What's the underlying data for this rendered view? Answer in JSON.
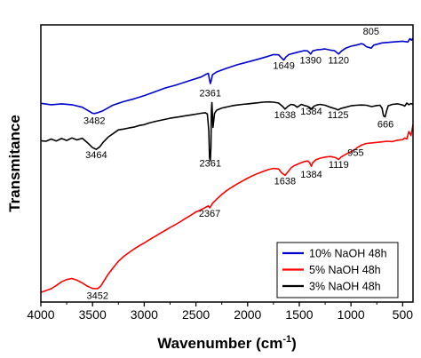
{
  "chart_data": {
    "type": "line",
    "title": "",
    "xlabel": "Wavenumber (cm",
    "xlabel_sup": "-1",
    "xlabel_close": ")",
    "ylabel": "Transmitance",
    "xlim": [
      4000,
      400
    ],
    "ylim": [
      0,
      1
    ],
    "x_reversed": true,
    "y_ticks_shown": false,
    "grid": false,
    "legend_position": "bottom-right",
    "x_ticks": [
      4000,
      3500,
      3000,
      2500,
      2000,
      1500,
      1000,
      500
    ],
    "x_tick_labels": [
      "4000",
      "3500",
      "3000",
      "2500",
      "2000",
      "1500",
      "1000",
      "500"
    ],
    "series": [
      {
        "name": "10% NaOH 48h",
        "color": "#0000cc",
        "points": [
          [
            4000,
            0.717
          ],
          [
            3900,
            0.712
          ],
          [
            3800,
            0.715
          ],
          [
            3700,
            0.712
          ],
          [
            3600,
            0.703
          ],
          [
            3550,
            0.692
          ],
          [
            3500,
            0.681
          ],
          [
            3482,
            0.68
          ],
          [
            3450,
            0.683
          ],
          [
            3400,
            0.69
          ],
          [
            3300,
            0.711
          ],
          [
            3200,
            0.723
          ],
          [
            3100,
            0.733
          ],
          [
            3000,
            0.745
          ],
          [
            2900,
            0.758
          ],
          [
            2800,
            0.772
          ],
          [
            2700,
            0.782
          ],
          [
            2600,
            0.794
          ],
          [
            2500,
            0.806
          ],
          [
            2450,
            0.812
          ],
          [
            2400,
            0.822
          ],
          [
            2380,
            0.825
          ],
          [
            2370,
            0.805
          ],
          [
            2361,
            0.788
          ],
          [
            2350,
            0.802
          ],
          [
            2340,
            0.82
          ],
          [
            2300,
            0.83
          ],
          [
            2200,
            0.844
          ],
          [
            2100,
            0.856
          ],
          [
            2000,
            0.866
          ],
          [
            1900,
            0.876
          ],
          [
            1800,
            0.887
          ],
          [
            1750,
            0.893
          ],
          [
            1700,
            0.892
          ],
          [
            1670,
            0.88
          ],
          [
            1649,
            0.873
          ],
          [
            1630,
            0.884
          ],
          [
            1600,
            0.893
          ],
          [
            1550,
            0.898
          ],
          [
            1500,
            0.903
          ],
          [
            1450,
            0.907
          ],
          [
            1420,
            0.906
          ],
          [
            1390,
            0.895
          ],
          [
            1370,
            0.906
          ],
          [
            1330,
            0.91
          ],
          [
            1300,
            0.911
          ],
          [
            1250,
            0.913
          ],
          [
            1200,
            0.909
          ],
          [
            1160,
            0.907
          ],
          [
            1120,
            0.895
          ],
          [
            1090,
            0.906
          ],
          [
            1050,
            0.916
          ],
          [
            1000,
            0.923
          ],
          [
            950,
            0.927
          ],
          [
            900,
            0.932
          ],
          [
            880,
            0.93
          ],
          [
            850,
            0.921
          ],
          [
            805,
            0.916
          ],
          [
            780,
            0.927
          ],
          [
            700,
            0.935
          ],
          [
            600,
            0.938
          ],
          [
            500,
            0.941
          ],
          [
            450,
            0.938
          ],
          [
            430,
            0.95
          ],
          [
            415,
            0.945
          ],
          [
            400,
            0.952
          ]
        ]
      },
      {
        "name": "5% NaOH 48h",
        "color": "#ff0000",
        "points": [
          [
            4000,
            0.035
          ],
          [
            3900,
            0.048
          ],
          [
            3850,
            0.06
          ],
          [
            3800,
            0.073
          ],
          [
            3750,
            0.081
          ],
          [
            3700,
            0.085
          ],
          [
            3650,
            0.079
          ],
          [
            3600,
            0.069
          ],
          [
            3550,
            0.057
          ],
          [
            3500,
            0.049
          ],
          [
            3452,
            0.048
          ],
          [
            3420,
            0.058
          ],
          [
            3400,
            0.07
          ],
          [
            3350,
            0.1
          ],
          [
            3300,
            0.124
          ],
          [
            3250,
            0.147
          ],
          [
            3200,
            0.164
          ],
          [
            3150,
            0.178
          ],
          [
            3100,
            0.191
          ],
          [
            3050,
            0.203
          ],
          [
            3000,
            0.213
          ],
          [
            2950,
            0.225
          ],
          [
            2900,
            0.236
          ],
          [
            2850,
            0.247
          ],
          [
            2800,
            0.258
          ],
          [
            2750,
            0.269
          ],
          [
            2700,
            0.279
          ],
          [
            2650,
            0.29
          ],
          [
            2600,
            0.302
          ],
          [
            2550,
            0.313
          ],
          [
            2500,
            0.325
          ],
          [
            2450,
            0.333
          ],
          [
            2400,
            0.343
          ],
          [
            2380,
            0.347
          ],
          [
            2367,
            0.34
          ],
          [
            2355,
            0.346
          ],
          [
            2340,
            0.356
          ],
          [
            2300,
            0.371
          ],
          [
            2250,
            0.388
          ],
          [
            2200,
            0.403
          ],
          [
            2150,
            0.415
          ],
          [
            2100,
            0.426
          ],
          [
            2050,
            0.437
          ],
          [
            2000,
            0.447
          ],
          [
            1950,
            0.456
          ],
          [
            1900,
            0.464
          ],
          [
            1850,
            0.471
          ],
          [
            1800,
            0.478
          ],
          [
            1750,
            0.482
          ],
          [
            1700,
            0.48
          ],
          [
            1670,
            0.466
          ],
          [
            1638,
            0.457
          ],
          [
            1610,
            0.47
          ],
          [
            1580,
            0.484
          ],
          [
            1550,
            0.492
          ],
          [
            1500,
            0.5
          ],
          [
            1450,
            0.507
          ],
          [
            1420,
            0.509
          ],
          [
            1400,
            0.503
          ],
          [
            1384,
            0.49
          ],
          [
            1370,
            0.503
          ],
          [
            1340,
            0.513
          ],
          [
            1300,
            0.519
          ],
          [
            1250,
            0.523
          ],
          [
            1200,
            0.525
          ],
          [
            1150,
            0.521
          ],
          [
            1119,
            0.514
          ],
          [
            1100,
            0.522
          ],
          [
            1050,
            0.533
          ],
          [
            1000,
            0.543
          ],
          [
            970,
            0.549
          ],
          [
            955,
            0.552
          ],
          [
            940,
            0.557
          ],
          [
            900,
            0.566
          ],
          [
            850,
            0.572
          ],
          [
            800,
            0.574
          ],
          [
            750,
            0.576
          ],
          [
            700,
            0.578
          ],
          [
            650,
            0.58
          ],
          [
            600,
            0.579
          ],
          [
            550,
            0.584
          ],
          [
            500,
            0.586
          ],
          [
            480,
            0.592
          ],
          [
            460,
            0.588
          ],
          [
            440,
            0.615
          ],
          [
            420,
            0.601
          ],
          [
            400,
            0.64
          ]
        ]
      },
      {
        "name": "3% NaOH 48h",
        "color": "#000000",
        "points": [
          [
            4000,
            0.582
          ],
          [
            3950,
            0.58
          ],
          [
            3900,
            0.588
          ],
          [
            3850,
            0.581
          ],
          [
            3800,
            0.59
          ],
          [
            3750,
            0.583
          ],
          [
            3700,
            0.592
          ],
          [
            3650,
            0.585
          ],
          [
            3600,
            0.591
          ],
          [
            3550,
            0.575
          ],
          [
            3500,
            0.557
          ],
          [
            3464,
            0.551
          ],
          [
            3430,
            0.56
          ],
          [
            3400,
            0.575
          ],
          [
            3350,
            0.595
          ],
          [
            3300,
            0.608
          ],
          [
            3250,
            0.621
          ],
          [
            3200,
            0.624
          ],
          [
            3150,
            0.628
          ],
          [
            3100,
            0.631
          ],
          [
            3050,
            0.637
          ],
          [
            3000,
            0.64
          ],
          [
            2950,
            0.646
          ],
          [
            2900,
            0.651
          ],
          [
            2850,
            0.655
          ],
          [
            2800,
            0.659
          ],
          [
            2750,
            0.663
          ],
          [
            2700,
            0.666
          ],
          [
            2650,
            0.669
          ],
          [
            2600,
            0.672
          ],
          [
            2550,
            0.675
          ],
          [
            2500,
            0.678
          ],
          [
            2450,
            0.681
          ],
          [
            2410,
            0.683
          ],
          [
            2390,
            0.679
          ],
          [
            2375,
            0.62
          ],
          [
            2368,
            0.52
          ],
          [
            2361,
            0.51
          ],
          [
            2355,
            0.56
          ],
          [
            2350,
            0.69
          ],
          [
            2345,
            0.72
          ],
          [
            2335,
            0.63
          ],
          [
            2320,
            0.68
          ],
          [
            2300,
            0.692
          ],
          [
            2250,
            0.7
          ],
          [
            2200,
            0.704
          ],
          [
            2150,
            0.708
          ],
          [
            2100,
            0.711
          ],
          [
            2050,
            0.713
          ],
          [
            2000,
            0.715
          ],
          [
            1950,
            0.717
          ],
          [
            1900,
            0.719
          ],
          [
            1850,
            0.721
          ],
          [
            1800,
            0.722
          ],
          [
            1750,
            0.721
          ],
          [
            1700,
            0.718
          ],
          [
            1660,
            0.705
          ],
          [
            1638,
            0.696
          ],
          [
            1610,
            0.706
          ],
          [
            1580,
            0.713
          ],
          [
            1550,
            0.711
          ],
          [
            1520,
            0.703
          ],
          [
            1480,
            0.713
          ],
          [
            1450,
            0.709
          ],
          [
            1420,
            0.706
          ],
          [
            1400,
            0.702
          ],
          [
            1384,
            0.696
          ],
          [
            1360,
            0.706
          ],
          [
            1330,
            0.711
          ],
          [
            1300,
            0.713
          ],
          [
            1250,
            0.71
          ],
          [
            1200,
            0.703
          ],
          [
            1150,
            0.697
          ],
          [
            1125,
            0.693
          ],
          [
            1100,
            0.698
          ],
          [
            1050,
            0.703
          ],
          [
            1000,
            0.708
          ],
          [
            950,
            0.71
          ],
          [
            900,
            0.711
          ],
          [
            850,
            0.71
          ],
          [
            800,
            0.705
          ],
          [
            750,
            0.709
          ],
          [
            720,
            0.71
          ],
          [
            700,
            0.7
          ],
          [
            685,
            0.672
          ],
          [
            670,
            0.668
          ],
          [
            655,
            0.69
          ],
          [
            640,
            0.708
          ],
          [
            600,
            0.713
          ],
          [
            550,
            0.715
          ],
          [
            500,
            0.711
          ],
          [
            480,
            0.707
          ],
          [
            460,
            0.718
          ],
          [
            440,
            0.712
          ],
          [
            420,
            0.716
          ],
          [
            400,
            0.713
          ]
        ]
      }
    ],
    "annotations": [
      {
        "text": "805",
        "x": 805,
        "y": 0.964
      },
      {
        "text": "1390",
        "x": 1390,
        "y": 0.861
      },
      {
        "text": "1120",
        "x": 1120,
        "y": 0.861
      },
      {
        "text": "1649",
        "x": 1649,
        "y": 0.842
      },
      {
        "text": "2361",
        "x": 2361,
        "y": 0.742
      },
      {
        "text": "3482",
        "x": 3482,
        "y": 0.642
      },
      {
        "text": "1638",
        "x": 1638,
        "y": 0.664
      },
      {
        "text": "1384",
        "x": 1384,
        "y": 0.677
      },
      {
        "text": "1125",
        "x": 1125,
        "y": 0.664
      },
      {
        "text": "666",
        "x": 666,
        "y": 0.63
      },
      {
        "text": "3464",
        "x": 3464,
        "y": 0.52
      },
      {
        "text": "2361",
        "x": 2361,
        "y": 0.488
      },
      {
        "text": "1119",
        "x": 1119,
        "y": 0.484
      },
      {
        "text": "955",
        "x": 955,
        "y": 0.528
      },
      {
        "text": "1638",
        "x": 1638,
        "y": 0.424
      },
      {
        "text": "1384",
        "x": 1384,
        "y": 0.448
      },
      {
        "text": "2367",
        "x": 2367,
        "y": 0.308
      },
      {
        "text": "3452",
        "x": 3452,
        "y": 0.012
      }
    ]
  }
}
